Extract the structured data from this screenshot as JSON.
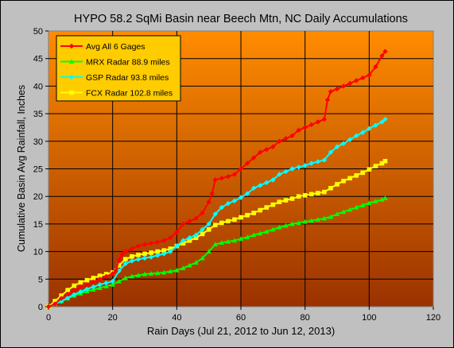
{
  "chart_data": {
    "type": "line",
    "title": "HYPO 58.2 SqMi Basin near Beech Mtn, NC Daily Accumulations",
    "xlabel": "Rain Days (Jul 21, 2012 to Jun 12, 2013)",
    "ylabel": "Cumulative Basin Avg Rainfall, Inches",
    "xlim": [
      0,
      120
    ],
    "ylim": [
      0,
      50
    ],
    "xticks": [
      0,
      20,
      40,
      60,
      80,
      100,
      120
    ],
    "yticks": [
      0,
      5,
      10,
      15,
      20,
      25,
      30,
      35,
      40,
      45,
      50
    ],
    "grid": true,
    "legend": "top-left",
    "background_gradient": [
      "#ff8c00",
      "#9a3200"
    ],
    "series": [
      {
        "name": "Avg All 6 Gages",
        "color": "#ff0000",
        "marker": "diamond",
        "x": [
          0,
          2,
          4,
          6,
          8,
          10,
          12,
          14,
          16,
          18,
          20,
          21,
          22,
          23,
          24,
          26,
          28,
          30,
          32,
          34,
          36,
          38,
          40,
          42,
          44,
          46,
          48,
          50,
          51,
          52,
          54,
          56,
          58,
          60,
          62,
          64,
          66,
          68,
          70,
          72,
          74,
          76,
          78,
          80,
          82,
          84,
          86,
          87,
          88,
          90,
          92,
          94,
          96,
          98,
          100,
          102,
          104,
          105
        ],
        "y": [
          0,
          0.5,
          1.5,
          2.3,
          3.0,
          3.6,
          4.0,
          4.5,
          5.0,
          5.5,
          6.0,
          6.5,
          8.5,
          9.5,
          10.0,
          10.5,
          11.0,
          11.3,
          11.5,
          11.7,
          12.0,
          12.5,
          13.5,
          15.0,
          15.5,
          16.0,
          17.0,
          19.0,
          20.5,
          23.0,
          23.3,
          23.6,
          24.0,
          25.0,
          26.0,
          27.0,
          28.0,
          28.5,
          29.0,
          30.0,
          30.5,
          31.0,
          32.0,
          32.5,
          33.0,
          33.5,
          34.0,
          37.5,
          39.0,
          39.5,
          40.0,
          40.5,
          41.0,
          41.5,
          42.0,
          43.5,
          45.5,
          46.3
        ]
      },
      {
        "name": "MRX Radar 88.9 miles",
        "color": "#00ff00",
        "marker": "triangle",
        "x": [
          0,
          2,
          4,
          6,
          8,
          10,
          12,
          14,
          16,
          18,
          20,
          22,
          24,
          26,
          28,
          30,
          32,
          34,
          36,
          38,
          40,
          42,
          44,
          46,
          48,
          50,
          52,
          54,
          56,
          58,
          60,
          62,
          64,
          66,
          68,
          70,
          72,
          74,
          76,
          78,
          80,
          82,
          84,
          86,
          88,
          90,
          92,
          94,
          96,
          98,
          100,
          102,
          104,
          105
        ],
        "y": [
          0,
          0.5,
          1.0,
          1.5,
          2.0,
          2.4,
          2.8,
          3.1,
          3.4,
          3.7,
          4.0,
          4.6,
          5.2,
          5.5,
          5.7,
          5.9,
          6.0,
          6.1,
          6.2,
          6.4,
          6.6,
          7.0,
          7.5,
          8.0,
          8.8,
          10.0,
          11.3,
          11.6,
          11.8,
          12.0,
          12.3,
          12.6,
          13.0,
          13.3,
          13.6,
          14.0,
          14.4,
          14.7,
          15.0,
          15.2,
          15.4,
          15.6,
          15.8,
          16.0,
          16.3,
          16.8,
          17.2,
          17.6,
          18.0,
          18.4,
          18.8,
          19.1,
          19.4,
          19.7
        ]
      },
      {
        "name": "GSP Radar 93.8 miles",
        "color": "#00ffff",
        "marker": "diamond",
        "x": [
          0,
          2,
          4,
          6,
          8,
          10,
          12,
          14,
          16,
          18,
          20,
          22,
          24,
          26,
          28,
          30,
          32,
          34,
          36,
          38,
          40,
          42,
          44,
          46,
          48,
          50,
          52,
          54,
          56,
          58,
          60,
          62,
          64,
          66,
          68,
          70,
          72,
          74,
          76,
          78,
          80,
          82,
          84,
          86,
          88,
          90,
          92,
          94,
          96,
          98,
          100,
          102,
          104,
          105
        ],
        "y": [
          0,
          0.5,
          1.0,
          1.6,
          2.2,
          2.7,
          3.2,
          3.6,
          4.0,
          4.3,
          4.6,
          6.5,
          7.8,
          8.3,
          8.6,
          8.8,
          9.0,
          9.3,
          9.6,
          10.0,
          11.0,
          12.0,
          12.5,
          13.0,
          14.0,
          15.0,
          16.8,
          18.0,
          18.7,
          19.2,
          19.8,
          20.5,
          21.5,
          22.0,
          22.5,
          23.0,
          24.0,
          24.5,
          25.0,
          25.3,
          25.6,
          26.0,
          26.3,
          26.6,
          28.0,
          29.0,
          29.6,
          30.3,
          31.0,
          31.6,
          32.3,
          32.9,
          33.5,
          34.0
        ]
      },
      {
        "name": "FCX Radar 102.8 miles",
        "color": "#ffff00",
        "marker": "square",
        "x": [
          0,
          2,
          4,
          6,
          8,
          10,
          12,
          14,
          16,
          18,
          20,
          22,
          24,
          26,
          28,
          30,
          32,
          34,
          36,
          38,
          40,
          42,
          44,
          46,
          48,
          50,
          52,
          54,
          56,
          58,
          60,
          62,
          64,
          66,
          68,
          70,
          72,
          74,
          76,
          78,
          80,
          82,
          84,
          86,
          88,
          90,
          92,
          94,
          96,
          98,
          100,
          102,
          104,
          105
        ],
        "y": [
          0,
          1.0,
          2.0,
          3.0,
          3.8,
          4.4,
          4.8,
          5.2,
          5.6,
          5.9,
          6.2,
          7.5,
          8.6,
          9.1,
          9.4,
          9.6,
          9.8,
          10.0,
          10.2,
          10.5,
          11.0,
          11.5,
          12.0,
          12.5,
          13.2,
          14.0,
          14.8,
          15.2,
          15.5,
          15.8,
          16.2,
          16.6,
          17.0,
          17.5,
          18.0,
          18.5,
          19.0,
          19.3,
          19.6,
          20.0,
          20.2,
          20.4,
          20.6,
          20.8,
          21.5,
          22.2,
          22.8,
          23.3,
          23.8,
          24.3,
          24.9,
          25.5,
          26.0,
          26.4
        ]
      }
    ]
  }
}
